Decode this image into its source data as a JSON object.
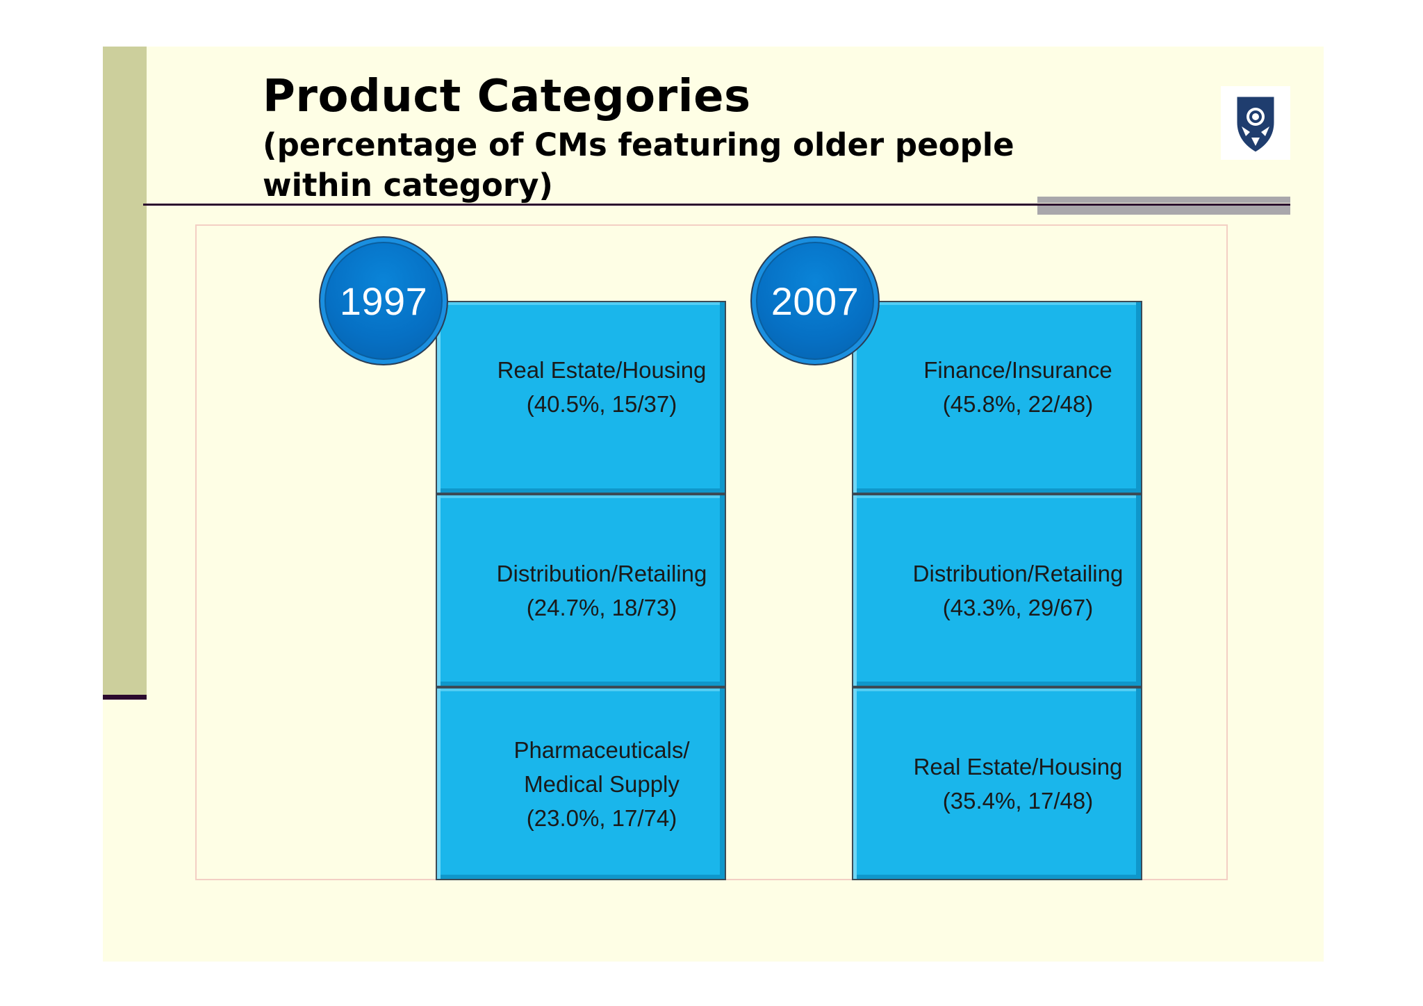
{
  "slide": {
    "title": "Product Categories",
    "subtitle": "(percentage of CMs featuring older people within category)"
  },
  "colors": {
    "background": "#fefee5",
    "side_bar": "#cccf9c",
    "rule": "#2b0a2e",
    "box_fill": "#1ab6eb",
    "badge_fill": "#0670c4"
  },
  "logo": {
    "icon": "crest-shield-icon"
  },
  "columns": [
    {
      "year": "1997",
      "items": [
        {
          "category": "Real Estate/Housing",
          "stat": "(40.5%, 15/37)"
        },
        {
          "category": "Distribution/Retailing",
          "stat": "(24.7%, 18/73)"
        },
        {
          "category": "Pharmaceuticals/",
          "category_line2": "Medical Supply",
          "stat": "(23.0%, 17/74)"
        }
      ]
    },
    {
      "year": "2007",
      "items": [
        {
          "category": "Finance/Insurance",
          "stat": "(45.8%, 22/48)"
        },
        {
          "category": "Distribution/Retailing",
          "stat": "(43.3%, 29/67)"
        },
        {
          "category": "Real Estate/Housing",
          "stat": "(35.4%, 17/48)"
        }
      ]
    }
  ]
}
